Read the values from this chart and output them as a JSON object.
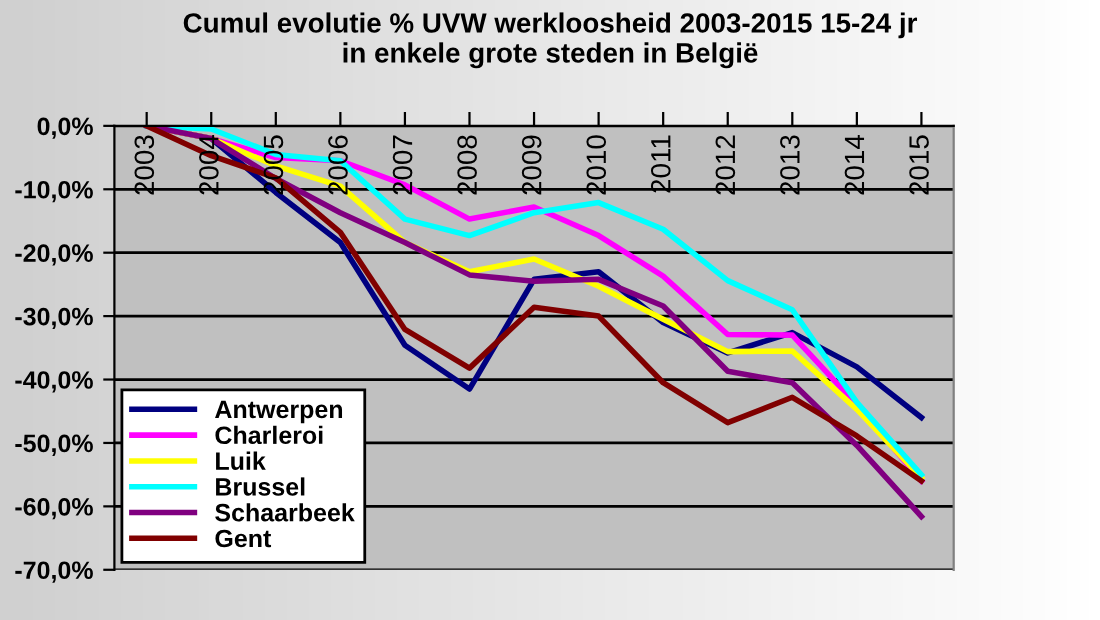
{
  "chart_data": {
    "type": "line",
    "title": "Cumul evolutie % UVW werkloosheid 2003-2015 15-24 jr\nin enkele grote steden in België",
    "categories": [
      "2003",
      "2004",
      "2005",
      "2006",
      "2007",
      "2008",
      "2009",
      "2010",
      "2011",
      "2012",
      "2013",
      "2014",
      "2015"
    ],
    "series": [
      {
        "name": "Antwerpen",
        "color": "#000080",
        "values": [
          0,
          -2,
          -10.5,
          -18.4,
          -34.6,
          -41.5,
          -24.2,
          -23,
          -31,
          -35.8,
          -32.6,
          -38,
          -46
        ]
      },
      {
        "name": "Charleroi",
        "color": "#ff00ff",
        "values": [
          0,
          -2,
          -5,
          -5.5,
          -9.3,
          -14.7,
          -12.8,
          -17.3,
          -23.7,
          -32.9,
          -33,
          -44,
          -56
        ]
      },
      {
        "name": "Luik",
        "color": "#ffff00",
        "values": [
          0,
          -2,
          -6.3,
          -9.5,
          -18.4,
          -23,
          -21,
          -25.3,
          -30.5,
          -35.6,
          -35.5,
          -44.7,
          -55.5
        ]
      },
      {
        "name": "Brussel",
        "color": "#00ffff",
        "values": [
          0,
          -0.5,
          -4.5,
          -5.5,
          -14.7,
          -17.3,
          -13.7,
          -12.1,
          -16.3,
          -24.4,
          -29,
          -43.6,
          -55
        ]
      },
      {
        "name": "Schaarbeek",
        "color": "#800080",
        "values": [
          0,
          -2,
          -8.3,
          -13.7,
          -18.4,
          -23.5,
          -24.5,
          -24.2,
          -28.4,
          -38.7,
          -40.5,
          -50.4,
          -61.6
        ]
      },
      {
        "name": "Gent",
        "color": "#800000",
        "values": [
          0,
          -4.7,
          -8.2,
          -16.8,
          -32.1,
          -38.2,
          -28.6,
          -30,
          -40.5,
          -46.8,
          -42.8,
          -48.9,
          -56
        ]
      }
    ],
    "ylim": [
      -70,
      0
    ],
    "yticks": [
      {
        "value": 0,
        "label": "0,0%"
      },
      {
        "value": -10,
        "label": "-10,0%"
      },
      {
        "value": -20,
        "label": "-20,0%"
      },
      {
        "value": -30,
        "label": "-30,0%"
      },
      {
        "value": -40,
        "label": "-40,0%"
      },
      {
        "value": -50,
        "label": "-50,0%"
      },
      {
        "value": -60,
        "label": "-60,0%"
      },
      {
        "value": -70,
        "label": "-70,0%"
      }
    ],
    "grid": "y",
    "legend": "bottom left",
    "marker": "none",
    "line_style": "solid"
  }
}
